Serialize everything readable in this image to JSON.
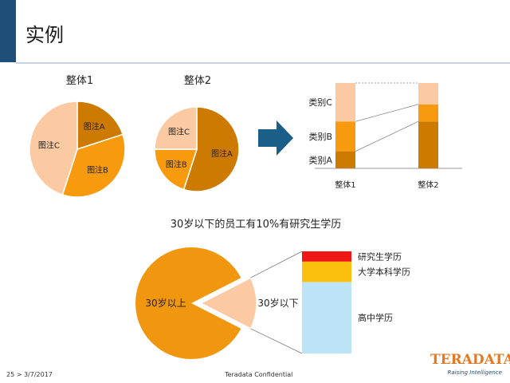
{
  "slide": {
    "title": "实例",
    "footer_left": "25 > 3/7/2017",
    "footer_center": "Teradata Confidential",
    "logo_text": "TERADATA",
    "logo_sub": "Raising Intelligence"
  },
  "chart_data": [
    {
      "type": "pie",
      "title": "整体1",
      "slices": [
        {
          "label": "图注A",
          "value": 20,
          "color": "#cc7a00"
        },
        {
          "label": "图注B",
          "value": 35,
          "color": "#f79a0e"
        },
        {
          "label": "图注C",
          "value": 45,
          "color": "#fbc9a2"
        }
      ]
    },
    {
      "type": "pie",
      "title": "整体2",
      "slices": [
        {
          "label": "图注A",
          "value": 55,
          "color": "#cc7a00"
        },
        {
          "label": "图注B",
          "value": 20,
          "color": "#f79a0e"
        },
        {
          "label": "图注C",
          "value": 25,
          "color": "#fbc9a2"
        }
      ]
    },
    {
      "type": "bar",
      "stacked": true,
      "categories": [
        "整体1",
        "整体2"
      ],
      "series": [
        {
          "name": "类别A",
          "values": [
            20,
            55
          ],
          "color": "#cc7a00"
        },
        {
          "name": "类别B",
          "values": [
            35,
            20
          ],
          "color": "#f79a0e"
        },
        {
          "name": "类别C",
          "values": [
            45,
            25
          ],
          "color": "#fbc9a2"
        }
      ]
    },
    {
      "type": "pie",
      "title": "30岁以下的员工有10%有研究生学历",
      "slices": [
        {
          "label": "30岁以上",
          "value": 85,
          "color": "#f0960f"
        },
        {
          "label": "30岁以下",
          "value": 15,
          "color": "#fbc9a2"
        }
      ]
    },
    {
      "type": "bar",
      "stacked": true,
      "series": [
        {
          "name": "高中学历",
          "value": 70,
          "color": "#bde3f7"
        },
        {
          "name": "大学本科学历",
          "value": 20,
          "color": "#fbc00d"
        },
        {
          "name": "研究生学历",
          "value": 10,
          "color": "#f01616"
        }
      ]
    }
  ]
}
